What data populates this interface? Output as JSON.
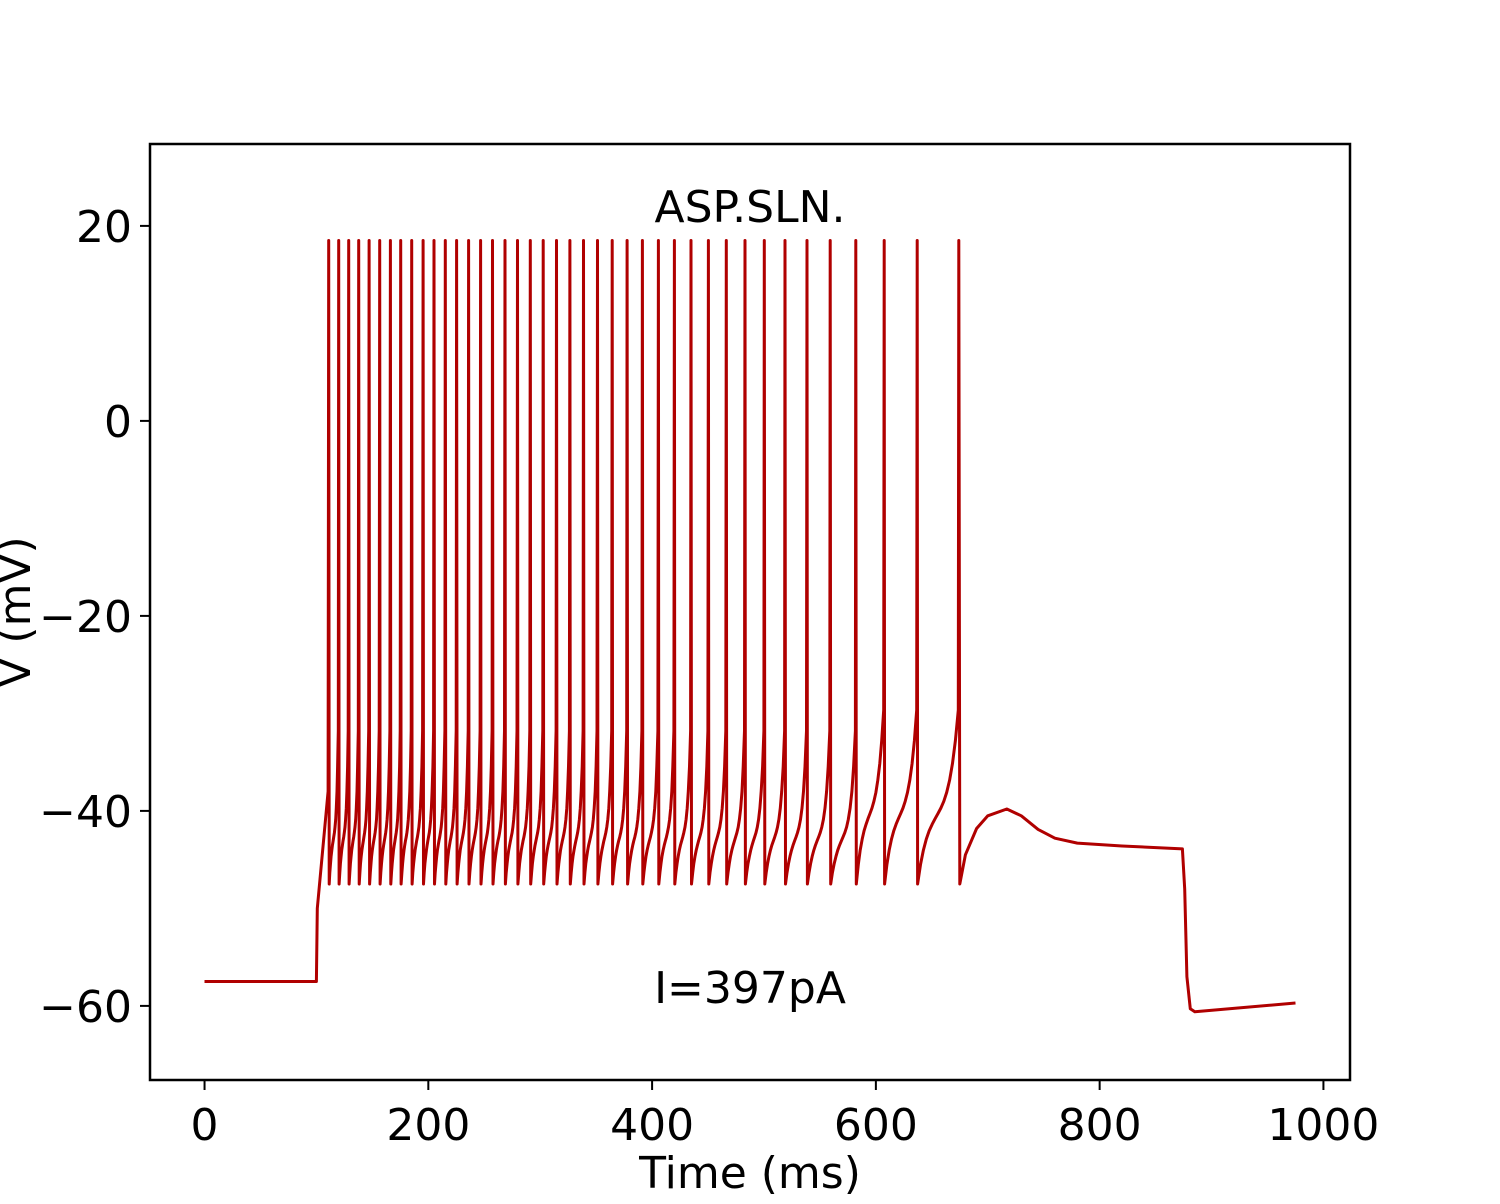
{
  "chart_data": {
    "type": "line",
    "title": "ASP.SLN.",
    "annotation": "I=397pA",
    "xlabel": "Time (ms)",
    "ylabel": "V (mV)",
    "xlim": [
      -48.75,
      1023.75
    ],
    "ylim": [
      -67.6,
      28.4
    ],
    "xticks": [
      0,
      200,
      400,
      600,
      800,
      1000
    ],
    "xtick_labels": [
      "0",
      "200",
      "400",
      "600",
      "800",
      "1000"
    ],
    "yticks": [
      20,
      0,
      -20,
      -40,
      -60
    ],
    "ytick_labels": [
      "20",
      "0",
      "−20",
      "−40",
      "−60"
    ],
    "grid": false,
    "line_color": "#b00000",
    "series": [
      {
        "resting_mV": -57.5,
        "stimulus_on_ms": 100,
        "stimulus_off_ms": 875,
        "spike_peak_mV": 18.5,
        "spike_trough_mV": -47.5,
        "spike_times_ms": [
          111.0,
          119.9,
          128.8,
          137.8,
          147.1,
          156.5,
          166.1,
          175.3,
          185.1,
          195.3,
          205.1,
          215.2,
          225.3,
          236.0,
          246.7,
          257.4,
          268.5,
          279.7,
          291.1,
          302.7,
          314.6,
          326.5,
          338.7,
          351.2,
          364.3,
          377.7,
          391.3,
          405.6,
          419.9,
          434.8,
          450.3,
          466.3,
          483.0,
          500.3,
          518.8,
          538.4,
          559.2,
          582.1,
          607.4,
          636.9,
          674.1
        ],
        "post_spike_trace": {
          "x": [
            675,
            680,
            690,
            700,
            717,
            730,
            745,
            760,
            780,
            820,
            874,
            876,
            878,
            881,
            885,
            975
          ],
          "y": [
            -47.5,
            -44.5,
            -41.8,
            -40.5,
            -39.8,
            -40.5,
            -41.9,
            -42.8,
            -43.3,
            -43.6,
            -43.9,
            -48,
            -57,
            -60.3,
            -60.6,
            -59.7
          ]
        }
      }
    ]
  }
}
